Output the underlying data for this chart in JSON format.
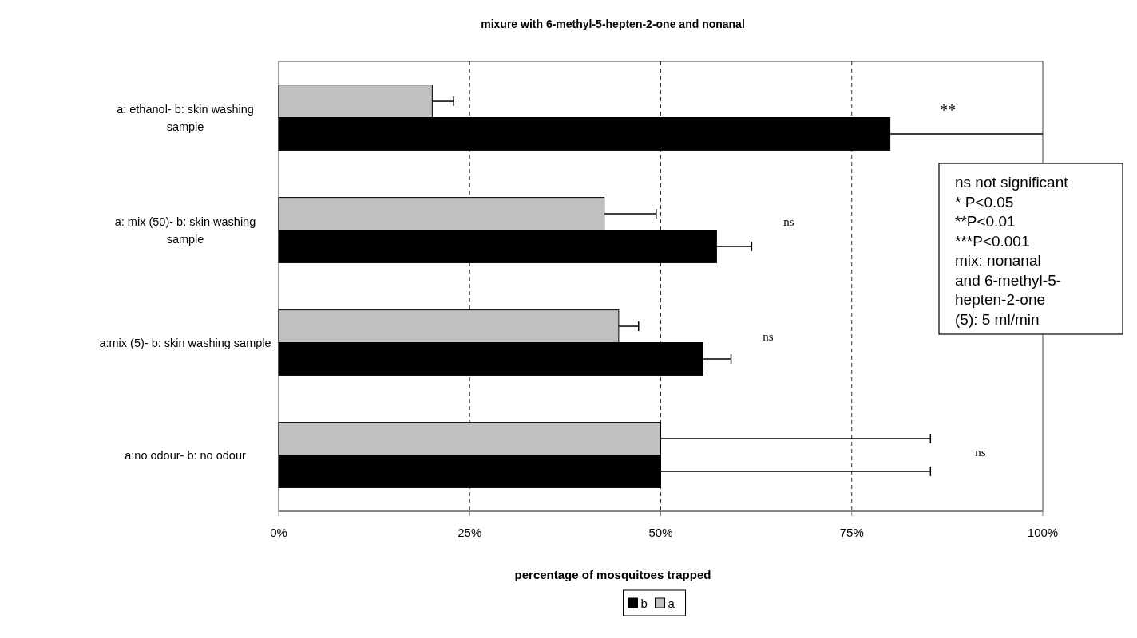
{
  "chart_data": {
    "type": "bar",
    "orientation": "horizontal",
    "title": "mixure with 6-methyl-5-hepten-2-one and nonanal",
    "xlabel": "percentage of mosquitoes trapped",
    "categories": [
      "a: ethanol- b: skin washing sample",
      "a: mix (50)- b: skin washing sample",
      "a:mix (5)- b: skin washing sample",
      "a:no odour- b: no odour"
    ],
    "series": [
      {
        "name": "a",
        "color": "#c0c0c0",
        "values": [
          20.1,
          42.6,
          44.5,
          50
        ],
        "errors": [
          2.8,
          6.8,
          2.6,
          35.3
        ]
      },
      {
        "name": "b",
        "color": "#000000",
        "values": [
          80,
          57.3,
          55.5,
          50
        ],
        "errors": [
          20,
          4.6,
          3.7,
          35.3
        ]
      }
    ],
    "xlim": [
      0,
      100
    ],
    "xticks": [
      {
        "value": 0,
        "label": "0%"
      },
      {
        "value": 25,
        "label": "25%"
      },
      {
        "value": 50,
        "label": "50%"
      },
      {
        "value": 75,
        "label": "75%"
      },
      {
        "value": 100,
        "label": "100%"
      }
    ],
    "grid": "x",
    "legend": "bottom",
    "annotations": [
      "**",
      "ns",
      "ns",
      "ns",
      "ns not significant\n* P<0.05\n**P<0.01\n***P<0.001\nmix: nonanal\nand 6-methyl-5-\nhepten-2-one\n(5): 5 ml/min"
    ]
  }
}
